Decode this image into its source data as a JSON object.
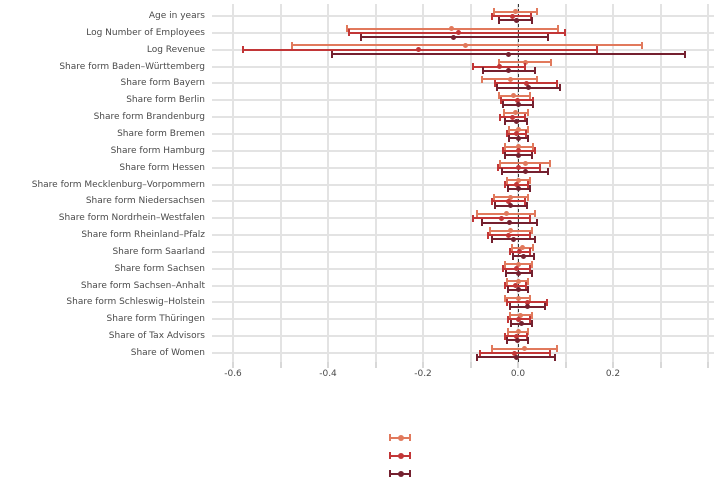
{
  "figure": {
    "background": "#ffffff",
    "text_color": "#4a4a4a",
    "grid_color": "#e3e3e3",
    "zero_reference_line": {
      "value": 0,
      "style": "dashed",
      "color": "#1a1a1a"
    }
  },
  "chart_data": {
    "type": "pointrange",
    "orientation": "horizontal",
    "title": "",
    "xlabel": "",
    "ylabel": "",
    "grid": true,
    "xlim": [
      -0.632,
      0.413
    ],
    "x_gridline_step": 0.1,
    "x_tick_labels": [
      {
        "value": -0.6,
        "label": "-0.6"
      },
      {
        "value": -0.4,
        "label": "-0.4"
      },
      {
        "value": -0.2,
        "label": "-0.2"
      },
      {
        "value": 0.0,
        "label": "0.0"
      },
      {
        "value": 0.2,
        "label": "0.2"
      }
    ],
    "categories": [
      "Age in years",
      "Log Number of Employees",
      "Log Revenue",
      "Share form Baden–Württemberg",
      "Share form Bayern",
      "Share form Berlin",
      "Share form Brandenburg",
      "Share form Bremen",
      "Share form Hamburg",
      "Share form Hessen",
      "Share form Mecklenburg–Vorpommern",
      "Share form Niedersachsen",
      "Share form Nordrhein–Westfalen",
      "Share form Rheinland–Pfalz",
      "Share form Saarland",
      "Share form Sachsen",
      "Share form Sachsen–Anhalt",
      "Share form Schleswig–Holstein",
      "Share form Thüringen",
      "Share of Tax Advisors",
      "Share of Women"
    ],
    "value_format": "[low, point, high]",
    "series": [
      {
        "name": "series-1",
        "color": "#E1795C",
        "values": [
          [
            -0.05,
            -0.005,
            0.04
          ],
          [
            -0.36,
            -0.14,
            0.085
          ],
          [
            -0.475,
            -0.11,
            0.26
          ],
          [
            -0.04,
            0.015,
            0.07
          ],
          [
            -0.075,
            -0.015,
            0.04
          ],
          [
            -0.04,
            -0.01,
            0.025
          ],
          [
            -0.03,
            -0.005,
            0.02
          ],
          [
            -0.02,
            0.0,
            0.02
          ],
          [
            -0.027,
            0.002,
            0.032
          ],
          [
            -0.038,
            0.015,
            0.067
          ],
          [
            -0.023,
            0.0,
            0.025
          ],
          [
            -0.05,
            -0.015,
            0.021
          ],
          [
            -0.086,
            -0.025,
            0.036
          ],
          [
            -0.059,
            -0.015,
            0.029
          ],
          [
            -0.013,
            0.009,
            0.032
          ],
          [
            -0.027,
            0.0,
            0.029
          ],
          [
            -0.023,
            0.0,
            0.021
          ],
          [
            -0.027,
            0.0,
            0.025
          ],
          [
            -0.017,
            0.006,
            0.029
          ],
          [
            -0.021,
            0.0,
            0.021
          ],
          [
            -0.055,
            0.014,
            0.082
          ]
        ]
      },
      {
        "name": "series-2",
        "color": "#C23637",
        "values": [
          [
            -0.055,
            -0.012,
            0.027
          ],
          [
            -0.355,
            -0.125,
            0.099
          ],
          [
            -0.58,
            -0.21,
            0.166
          ],
          [
            -0.095,
            -0.04,
            0.015
          ],
          [
            -0.048,
            0.017,
            0.082
          ],
          [
            -0.036,
            -0.002,
            0.032
          ],
          [
            -0.038,
            -0.012,
            0.015
          ],
          [
            -0.023,
            -0.003,
            0.017
          ],
          [
            -0.032,
            0.002,
            0.036
          ],
          [
            -0.042,
            0.002,
            0.046
          ],
          [
            -0.027,
            -0.003,
            0.021
          ],
          [
            -0.055,
            -0.02,
            0.015
          ],
          [
            -0.095,
            -0.035,
            0.025
          ],
          [
            -0.063,
            -0.019,
            0.025
          ],
          [
            -0.017,
            0.004,
            0.025
          ],
          [
            -0.032,
            -0.003,
            0.025
          ],
          [
            -0.027,
            -0.005,
            0.017
          ],
          [
            -0.023,
            0.019,
            0.061
          ],
          [
            -0.021,
            0.002,
            0.025
          ],
          [
            -0.027,
            -0.004,
            0.019
          ],
          [
            -0.08,
            -0.007,
            0.067
          ]
        ]
      },
      {
        "name": "series-3",
        "color": "#74202F",
        "values": [
          [
            -0.04,
            -0.004,
            0.03
          ],
          [
            -0.33,
            -0.135,
            0.063
          ],
          [
            -0.392,
            -0.02,
            0.352
          ],
          [
            -0.074,
            -0.019,
            0.036
          ],
          [
            -0.044,
            0.022,
            0.088
          ],
          [
            -0.032,
            0.0,
            0.032
          ],
          [
            -0.027,
            -0.004,
            0.019
          ],
          [
            -0.019,
            0.001,
            0.021
          ],
          [
            -0.027,
            0.001,
            0.029
          ],
          [
            -0.034,
            0.015,
            0.063
          ],
          [
            -0.021,
            0.002,
            0.025
          ],
          [
            -0.048,
            -0.015,
            0.019
          ],
          [
            -0.076,
            -0.018,
            0.04
          ],
          [
            -0.055,
            -0.009,
            0.036
          ],
          [
            -0.011,
            0.011,
            0.034
          ],
          [
            -0.025,
            0.002,
            0.029
          ],
          [
            -0.021,
            0.0,
            0.021
          ],
          [
            -0.017,
            0.02,
            0.057
          ],
          [
            -0.015,
            0.007,
            0.029
          ],
          [
            -0.023,
            -0.001,
            0.021
          ],
          [
            -0.086,
            -0.004,
            0.078
          ]
        ]
      }
    ],
    "legend": {
      "position": "bottom-center",
      "n_keys": 3,
      "labels_visible": false
    }
  }
}
